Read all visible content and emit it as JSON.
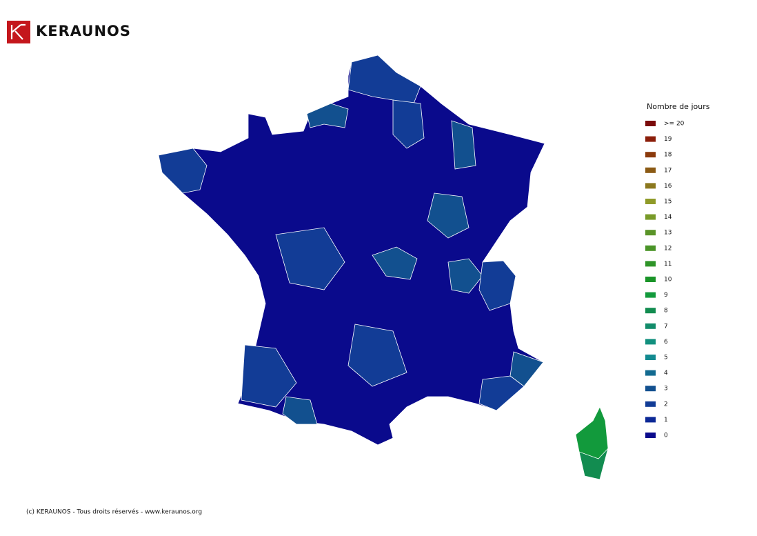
{
  "header": {
    "brand": "KERAUNOS"
  },
  "legend": {
    "title": "Nombre de jours",
    "items": [
      {
        "label": ">= 20",
        "color": "#7a0a0a"
      },
      {
        "label": "19",
        "color": "#8b1e0a"
      },
      {
        "label": "18",
        "color": "#8b3a0c"
      },
      {
        "label": "17",
        "color": "#8b5a14"
      },
      {
        "label": "16",
        "color": "#8b781e"
      },
      {
        "label": "15",
        "color": "#8f9a28"
      },
      {
        "label": "14",
        "color": "#789a28"
      },
      {
        "label": "13",
        "color": "#5a9428"
      },
      {
        "label": "12",
        "color": "#4a9428"
      },
      {
        "label": "11",
        "color": "#2e9428"
      },
      {
        "label": "10",
        "color": "#1a9428"
      },
      {
        "label": "9",
        "color": "#129a3c"
      },
      {
        "label": "8",
        "color": "#128c50"
      },
      {
        "label": "7",
        "color": "#128c6a"
      },
      {
        "label": "6",
        "color": "#12907e"
      },
      {
        "label": "5",
        "color": "#128a90"
      },
      {
        "label": "4",
        "color": "#126a90"
      },
      {
        "label": "3",
        "color": "#12508f"
      },
      {
        "label": "2",
        "color": "#123c96"
      },
      {
        "label": "1",
        "color": "#0c2896"
      },
      {
        "label": "0",
        "color": "#0a0a8c"
      }
    ]
  },
  "footer": "(c) KERAUNOS - Tous droits réservés - www.keraunos.org"
}
